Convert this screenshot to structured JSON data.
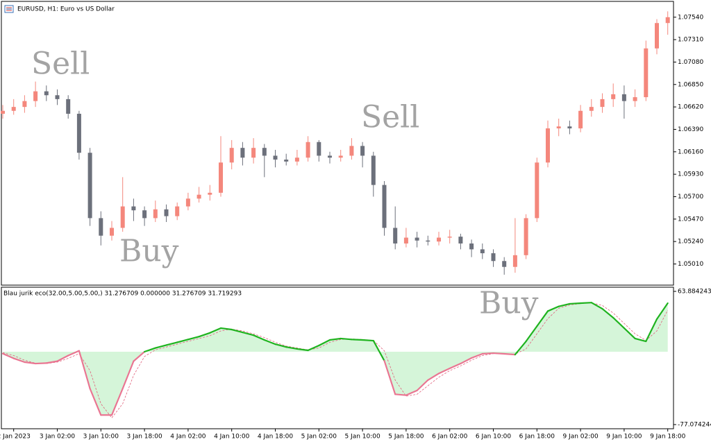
{
  "chart_data": [
    {
      "type": "candlestick",
      "title": "EURUSD, H1:  Euro vs US Dollar",
      "annotations": [
        "Sell",
        "Buy",
        "Sell",
        "Buy"
      ],
      "up_color": "#f4877c",
      "down_color": "#6c707b",
      "categories": [
        null,
        "2 Jan 2023",
        null,
        null,
        null,
        "3 Jan 02:00",
        null,
        null,
        null,
        "3 Jan 10:00",
        null,
        null,
        null,
        "3 Jan 18:00",
        null,
        null,
        null,
        "4 Jan 02:00",
        null,
        null,
        null,
        "4 Jan 10:00",
        null,
        null,
        null,
        "4 Jan 18:00",
        null,
        null,
        null,
        "5 Jan 02:00",
        null,
        null,
        null,
        "5 Jan 10:00",
        null,
        null,
        null,
        "5 Jan 18:00",
        null,
        null,
        null,
        "6 Jan 02:00",
        null,
        null,
        null,
        "6 Jan 10:00",
        null,
        null,
        null,
        "6 Jan 18:00",
        null,
        null,
        null,
        "9 Jan 02:00",
        null,
        null,
        null,
        "9 Jan 10:00",
        null,
        null,
        null,
        "9 Jan 18:00"
      ],
      "open": [
        1.0655,
        1.0658,
        1.0662,
        1.0668,
        1.0678,
        1.0674,
        1.067,
        1.0655,
        1.0615,
        1.0548,
        1.053,
        1.0538,
        1.056,
        1.0556,
        1.0548,
        1.0557,
        1.055,
        1.056,
        1.0568,
        1.0572,
        1.0574,
        1.0605,
        1.062,
        1.061,
        1.062,
        1.0612,
        1.0608,
        1.0606,
        1.061,
        1.0626,
        1.0612,
        1.061,
        1.0612,
        1.0622,
        1.0612,
        1.0582,
        1.0538,
        1.0522,
        1.0528,
        1.0525,
        1.0524,
        1.0528,
        1.0529,
        1.0522,
        1.0516,
        1.0512,
        1.0504,
        1.0498,
        1.051,
        1.0548,
        1.0605,
        1.064,
        1.0642,
        1.064,
        1.0658,
        1.0662,
        1.067,
        1.0675,
        1.0668,
        1.0672,
        1.0722,
        1.0748
      ],
      "high": [
        1.0664,
        1.067,
        1.0674,
        1.0688,
        1.0684,
        1.068,
        1.0674,
        1.0658,
        1.062,
        1.0555,
        1.0545,
        1.059,
        1.0568,
        1.056,
        1.0566,
        1.0562,
        1.0564,
        1.0574,
        1.058,
        1.0582,
        1.0632,
        1.0628,
        1.0626,
        1.063,
        1.0624,
        1.0618,
        1.0614,
        1.0618,
        1.0632,
        1.0628,
        1.0616,
        1.0618,
        1.063,
        1.0626,
        1.0616,
        1.0586,
        1.056,
        1.0538,
        1.0534,
        1.053,
        1.0534,
        1.0536,
        1.0532,
        1.0526,
        1.0522,
        1.0516,
        1.0508,
        1.0548,
        1.0552,
        1.061,
        1.0648,
        1.065,
        1.0648,
        1.0664,
        1.067,
        1.0676,
        1.0686,
        1.0684,
        1.068,
        1.073,
        1.0752,
        1.076
      ],
      "low": [
        1.065,
        1.0654,
        1.0656,
        1.0662,
        1.0668,
        1.0664,
        1.065,
        1.0608,
        1.054,
        1.052,
        1.0525,
        1.0534,
        1.0545,
        1.054,
        1.0544,
        1.0544,
        1.0546,
        1.0556,
        1.0564,
        1.0566,
        1.057,
        1.0598,
        1.0602,
        1.0604,
        1.059,
        1.06,
        1.0602,
        1.0602,
        1.0606,
        1.0606,
        1.0604,
        1.0606,
        1.0608,
        1.06,
        1.057,
        1.053,
        1.0516,
        1.0518,
        1.0518,
        1.052,
        1.052,
        1.0522,
        1.0516,
        1.0508,
        1.0506,
        1.0498,
        1.049,
        1.0492,
        1.0506,
        1.0544,
        1.06,
        1.0632,
        1.0634,
        1.0636,
        1.0652,
        1.0656,
        1.0662,
        1.065,
        1.0662,
        1.0668,
        1.0716,
        1.0736
      ],
      "close": [
        1.0658,
        1.0662,
        1.0668,
        1.0678,
        1.0674,
        1.067,
        1.0655,
        1.0615,
        1.0548,
        1.053,
        1.0538,
        1.056,
        1.0556,
        1.0548,
        1.0557,
        1.055,
        1.056,
        1.0568,
        1.0572,
        1.0574,
        1.0605,
        1.062,
        1.061,
        1.062,
        1.0612,
        1.0608,
        1.0606,
        1.061,
        1.0626,
        1.0612,
        1.061,
        1.0612,
        1.0622,
        1.0612,
        1.0582,
        1.0538,
        1.0522,
        1.0528,
        1.0525,
        1.0524,
        1.0528,
        1.0529,
        1.0522,
        1.0516,
        1.0512,
        1.0504,
        1.0498,
        1.051,
        1.0548,
        1.0605,
        1.064,
        1.0642,
        1.064,
        1.0658,
        1.0662,
        1.067,
        1.0675,
        1.0668,
        1.0672,
        1.0722,
        1.0748,
        1.0754
      ],
      "ylim": [
        1.04793,
        1.07702
      ],
      "yticks": [
        {
          "value": 1.0754,
          "label": "1.07540"
        },
        {
          "value": 1.0731,
          "label": "1.07310"
        },
        {
          "value": 1.0708,
          "label": "1.07080"
        },
        {
          "value": 1.0685,
          "label": "1.06850"
        },
        {
          "value": 1.0662,
          "label": "1.06620"
        },
        {
          "value": 1.0639,
          "label": "1.06390"
        },
        {
          "value": 1.0616,
          "label": "1.06160"
        },
        {
          "value": 1.0593,
          "label": "1.05930"
        },
        {
          "value": 1.057,
          "label": "1.05700"
        },
        {
          "value": 1.0547,
          "label": "1.05470"
        },
        {
          "value": 1.0524,
          "label": "1.05240"
        },
        {
          "value": 1.0501,
          "label": "1.05010"
        }
      ]
    },
    {
      "type": "oscillator",
      "title": "Blau jurik eco(32.00,5.00,5.00,) 31.276709 0.000000 31.276709 31.719293",
      "positive_color": "#1fb31f",
      "negative_color": "#ea7592",
      "fill_color": "#d5f5d9",
      "signal_color": "#e0607a",
      "values": [
        -2,
        -7,
        -11,
        -12.5,
        -12,
        -10,
        -4,
        1,
        -39,
        -67,
        -67,
        -39,
        -10,
        0,
        4,
        7,
        10,
        13,
        16,
        20,
        25,
        23.5,
        20.5,
        17.5,
        12.5,
        8,
        5,
        3,
        1.5,
        6.6,
        12.5,
        14,
        13,
        12.5,
        11.7,
        -9.5,
        -45,
        -46,
        -41,
        -30,
        -23,
        -17.6,
        -12.5,
        -6.6,
        -2.2,
        -1.5,
        -2.2,
        -3,
        11,
        27,
        43,
        48,
        50.7,
        51.4,
        52,
        45.5,
        36,
        25,
        14,
        11,
        34.5,
        51.4
      ],
      "signal": [
        -1,
        -4,
        -9,
        -12,
        -12.5,
        -11,
        -7,
        -2,
        -20,
        -55,
        -70,
        -55,
        -25,
        -5,
        2,
        5,
        8,
        11,
        14,
        17,
        22,
        24,
        22,
        19,
        15,
        10,
        6,
        4,
        2,
        4,
        10,
        13,
        13.5,
        13,
        12,
        1,
        -30,
        -47,
        -45,
        -36,
        -27,
        -20,
        -15,
        -9,
        -4,
        -2,
        -2,
        -2.5,
        3,
        19,
        35,
        46,
        49.5,
        51,
        51.8,
        49,
        41,
        30,
        19,
        12,
        22,
        44
      ],
      "ylim": [
        -77.074244,
        63.884243
      ],
      "yticks": [
        63.884243,
        -77.074244
      ]
    }
  ]
}
